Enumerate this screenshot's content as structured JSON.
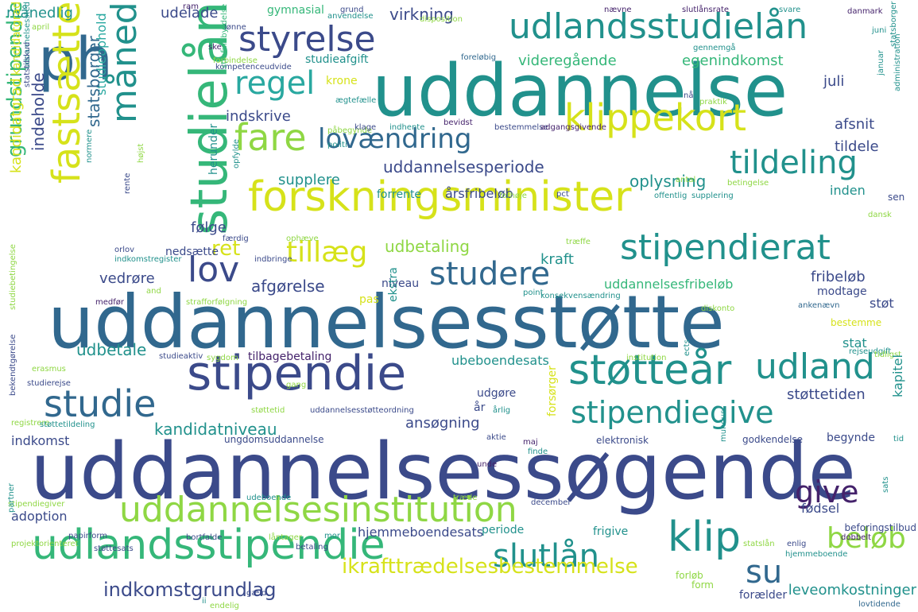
{
  "palette": {
    "navy": "#3b4a8a",
    "blue": "#31688e",
    "teal": "#21918c",
    "green": "#35b779",
    "lime": "#8fd744",
    "yellow": "#d6e21a",
    "purple": "#44226b",
    "aqua": "#29a8a0"
  },
  "words": [
    "uddannelsessøgende",
    "uddannelsesstøtte",
    "uddannelse",
    "forskningsminister",
    "ph",
    "studielån",
    "udlandsstudielån",
    "styrelse",
    "måned",
    "fastsætte",
    "regel",
    "fare",
    "klippekort",
    "lovændring",
    "tildeling",
    "stipendierat",
    "tillæg",
    "lov",
    "studere",
    "stipendie",
    "støtteår",
    "udland",
    "studie",
    "stipendiegive",
    "grundstipendie",
    "uddannelsesinstitution",
    "udlandsstipendie",
    "klip",
    "give",
    "slutlån",
    "su",
    "beløb",
    "ikrafttrædelsesbestemmelse",
    "indkomstgrundlag",
    "månedlig",
    "udelade",
    "virkning",
    "gymnasial",
    "ram",
    "anvendelse",
    "grund",
    "nævne",
    "slutlånsrate",
    "svare",
    "disposition",
    "danmark",
    "juni",
    "april",
    "kandidatgrad",
    "lønne",
    "studieafgift",
    "videregående",
    "egenindkomst",
    "forbindelse",
    "foreløbig",
    "gennemgå",
    "ske",
    "kompetenceudvide",
    "strafuldbyrdelse",
    "krone",
    "juli",
    "indskrive",
    "ægtefælle",
    "nå",
    "praktik",
    "januar",
    "studieophold",
    "statsborger",
    "afsnit",
    "tildele",
    "kandidatgrad",
    "indeholde",
    "påbegynde",
    "politi",
    "klage",
    "indhente",
    "bevidst",
    "bestemmelse",
    "adgangsgivende",
    "administration",
    "uddannelsesperiode",
    "supplere",
    "oplysning",
    "herunder",
    "forrente",
    "årsfribeløb",
    "inden",
    "sen",
    "pct",
    "offentlig",
    "supplering",
    "betingelse",
    "antal",
    "rente",
    "følge",
    "ret",
    "udbetaling",
    "kraft",
    "fribeløb",
    "modtage",
    "støt",
    "afgørelse",
    "niveau",
    "uddannelsesfribeløb",
    "vedrøre",
    "medfør",
    "and",
    "strafforfølgning",
    "pas",
    "konsekvensændring",
    "diskonto",
    "ankenævn",
    "ekstra",
    "bestemme",
    "stat",
    "tilbagebetaling",
    "udbetale",
    "studieaktiv",
    "sygdom",
    "ubeboendesats",
    "institution",
    "rejseudgift",
    "tidligst",
    "støttetiden",
    "kapitel",
    "udgøre",
    "år",
    "årlig",
    "ects",
    "erasmus",
    "studierejse",
    "kandidatniveau",
    "ansøgning",
    "forsørger",
    "støttetid",
    "uddannelsesstøtteordning",
    "registrere",
    "støttetildeling",
    "indkomst",
    "ungdomsuddannelse",
    "aktie",
    "elektronisk",
    "godkendelse",
    "begynde",
    "tid",
    "maj",
    "finde",
    "unde",
    "adoption",
    "fødsel",
    "december",
    "stipendiegiver",
    "udeboende",
    "træde",
    "hjemmeboendesats",
    "periode",
    "frigive",
    "statslån",
    "beforingstilbud",
    "sats",
    "papirform",
    "projektorienteret",
    "bortfalde",
    "låntager",
    "mor",
    "dobbelt",
    "støttesats",
    "betaling",
    "enlig",
    "hjemmeboende",
    "partner",
    "forløb",
    "form",
    "gæld",
    "ii",
    "endelig",
    "forælder",
    "leveomkostninger",
    "lovtidende",
    "normere",
    "højst",
    "opfylde",
    "forhøje",
    "træffe",
    "dansk",
    "orlov",
    "indkomstregister",
    "nedsætte",
    "indbringe",
    "færdig",
    "ophæve",
    "bekendtgørelse",
    "studiebetingelse",
    "uddannelsessted",
    "statstilskud",
    "mundus",
    "point",
    "gang",
    "statsborger"
  ]
}
